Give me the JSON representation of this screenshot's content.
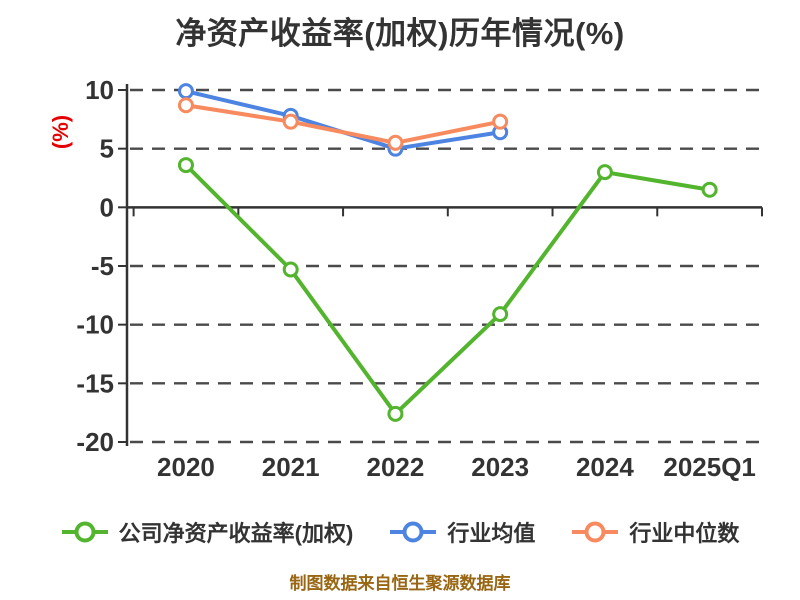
{
  "chart_data": {
    "type": "line",
    "title": "净资产收益率(加权)历年情况(%)",
    "ylabel": "(%)",
    "xlabel": "",
    "categories": [
      "2020",
      "2021",
      "2022",
      "2023",
      "2024",
      "2025Q1"
    ],
    "yticks": [
      10,
      5,
      0,
      -5,
      -10,
      -15,
      -20
    ],
    "ylim": [
      -20,
      10
    ],
    "grid": "horizontal-dashed",
    "legend_position": "bottom",
    "series": [
      {
        "name": "公司净资产收益率(加权)",
        "color": "#53b42e",
        "values": [
          3.6,
          -5.3,
          -17.6,
          -9.1,
          3.0,
          1.5
        ]
      },
      {
        "name": "行业均值",
        "color": "#4d84e2",
        "values": [
          9.9,
          7.8,
          5.0,
          6.4,
          null,
          null
        ]
      },
      {
        "name": "行业中位数",
        "color": "#f78b5f",
        "values": [
          8.7,
          7.3,
          5.5,
          7.3,
          null,
          null
        ]
      }
    ]
  },
  "footer": {
    "text": "制图数据来自恒生聚源数据库",
    "color": "#996613"
  },
  "colors": {
    "title_text": "#333333",
    "tick_text": "#333333",
    "axis_line": "#333333",
    "gridline": "#4a4a4a",
    "ylabel_red": "#e60000",
    "marker_fill": "#ffffff"
  }
}
